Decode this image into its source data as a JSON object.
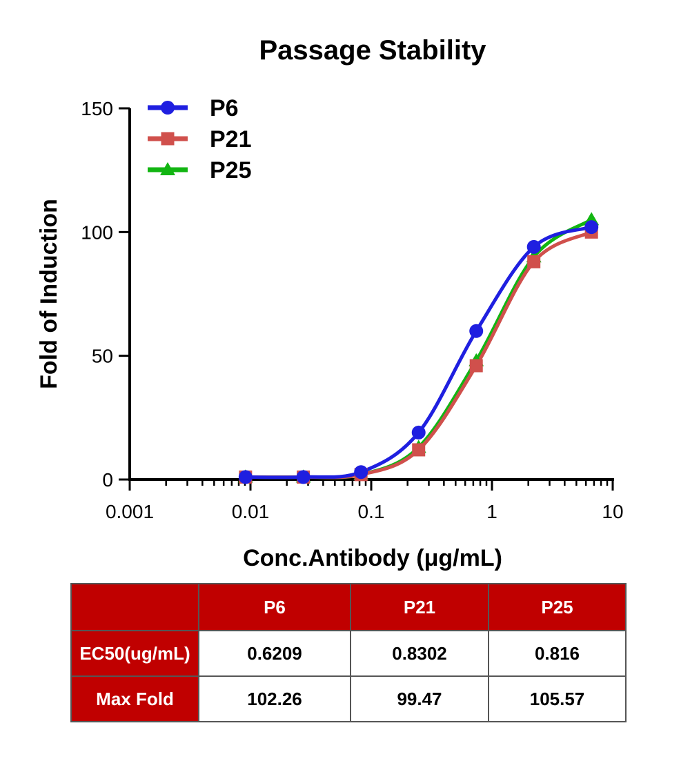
{
  "chart_data": {
    "type": "line",
    "title": "Passage Stability",
    "xlabel": "Conc.Antibody (μg/mL)",
    "ylabel": "Fold of Induction",
    "x_scale": "log",
    "xlim": [
      0.001,
      10
    ],
    "ylim": [
      0,
      150
    ],
    "x_ticks": [
      0.001,
      0.01,
      0.1,
      1,
      10
    ],
    "x_tick_labels": [
      "0.001",
      "0.01",
      "0.1",
      "1",
      "10"
    ],
    "y_ticks": [
      0,
      50,
      100,
      150
    ],
    "y_tick_labels": [
      "0",
      "50",
      "100",
      "150"
    ],
    "grid": false,
    "legend_position": "top-left",
    "series": [
      {
        "name": "P6",
        "color": "#1f1fe0",
        "marker": "circle",
        "x": [
          0.0091,
          0.0274,
          0.0823,
          0.247,
          0.741,
          2.222,
          6.667
        ],
        "y": [
          1,
          1,
          3,
          19,
          60,
          94,
          102
        ]
      },
      {
        "name": "P21",
        "color": "#d0504c",
        "marker": "square",
        "x": [
          0.0091,
          0.0274,
          0.0823,
          0.247,
          0.741,
          2.222,
          6.667
        ],
        "y": [
          1,
          1,
          2,
          12,
          46,
          88,
          100
        ]
      },
      {
        "name": "P25",
        "color": "#12b512",
        "marker": "triangle",
        "x": [
          0.0091,
          0.0274,
          0.0823,
          0.247,
          0.741,
          2.222,
          6.667
        ],
        "y": [
          1,
          1,
          2,
          13,
          48,
          90,
          105
        ]
      }
    ]
  },
  "table": {
    "headers": [
      "",
      "P6",
      "P21",
      "P25"
    ],
    "rows": [
      {
        "label": "EC50(ug/mL)",
        "values": [
          "0.6209",
          "0.8302",
          "0.816"
        ]
      },
      {
        "label": "Max Fold",
        "values": [
          "102.26",
          "99.47",
          "105.57"
        ]
      }
    ],
    "header_color": "#c00000"
  }
}
